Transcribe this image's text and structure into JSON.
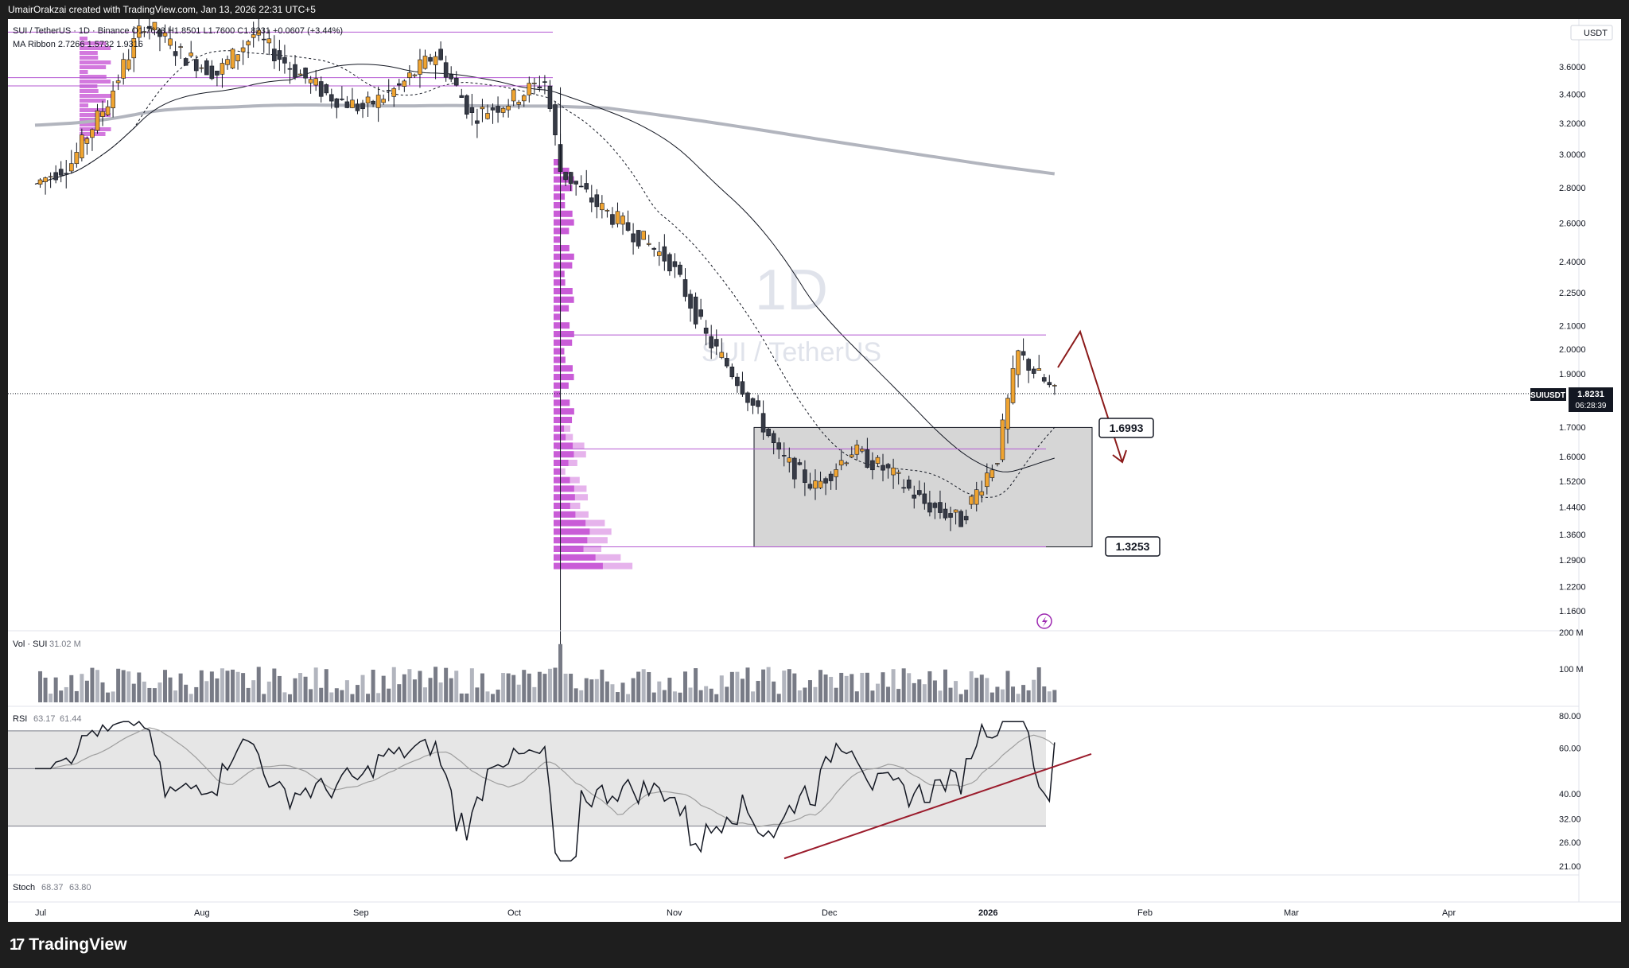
{
  "header": {
    "text": "UmairOrakzai created with TradingView.com, Jan 13, 2026 22:31 UTC+5"
  },
  "footer": {
    "brand": "TradingView",
    "brand_icon": "tradingview-logo-icon"
  },
  "chart": {
    "symbol_line": "SUI / TetherUS · 1D · Binance  O1.7623 H1.8501 L1.7600 C1.8231 +0.0607 (+3.44%)",
    "ma_line": "MA Ribbon  2.7266  1.5732  1.9316",
    "watermark_interval": "1D",
    "watermark_symbol": "SUI / TetherUS",
    "currency": "USDT",
    "price_badge_symbol": "SUIUSDT",
    "price_badge_value": "1.8231",
    "price_badge_timer": "06:28:39",
    "level_upper": "1.6993",
    "level_lower": "1.3253",
    "vol_label": "Vol · SUI",
    "vol_value": "31.02 M",
    "rsi_label": "RSI",
    "rsi_value1": "63.17",
    "rsi_value2": "61.44",
    "stoch_label": "Stoch",
    "stoch_value1": "68.37",
    "stoch_value2": "63.80",
    "colors": {
      "up": "#f0a430",
      "down": "#363a45",
      "ma_slow": "#b2b5be",
      "profile": "#c040d0",
      "level": "#b45ad2",
      "arrow": "#8b1a1a",
      "trend": "#9b1c2c"
    }
  },
  "chart_data": {
    "type": "candlestick",
    "price_ticks": [
      "3.6000",
      "3.4000",
      "3.2000",
      "3.0000",
      "2.8000",
      "2.6000",
      "2.4000",
      "2.2500",
      "2.1000",
      "2.0000",
      "1.9000",
      "1.7000",
      "1.6000",
      "1.5200",
      "1.4400",
      "1.3600",
      "1.2900",
      "1.2200",
      "1.1600"
    ],
    "vol_ticks": [
      "200 M",
      "100 M"
    ],
    "rsi_ticks": [
      "80.00",
      "60.00",
      "40.00",
      "32.00",
      "26.00",
      "21.00"
    ],
    "x_labels": [
      "Jul",
      "Aug",
      "Sep",
      "Oct",
      "Nov",
      "Dec",
      "2026",
      "Feb",
      "Mar",
      "Apr"
    ],
    "close_series": [
      {
        "date": "Jul 01",
        "close": 2.82
      },
      {
        "date": "Jul 08",
        "close": 2.95
      },
      {
        "date": "Jul 15",
        "close": 3.35
      },
      {
        "date": "Jul 22",
        "close": 3.95
      },
      {
        "date": "Jul 29",
        "close": 3.7
      },
      {
        "date": "Aug 05",
        "close": 3.55
      },
      {
        "date": "Aug 12",
        "close": 3.85
      },
      {
        "date": "Aug 19",
        "close": 3.6
      },
      {
        "date": "Aug 26",
        "close": 3.4
      },
      {
        "date": "Sep 02",
        "close": 3.3
      },
      {
        "date": "Sep 09",
        "close": 3.45
      },
      {
        "date": "Sep 16",
        "close": 3.7
      },
      {
        "date": "Sep 23",
        "close": 3.25
      },
      {
        "date": "Sep 30",
        "close": 3.35
      },
      {
        "date": "Oct 07",
        "close": 3.5
      },
      {
        "date": "Oct 10",
        "close": 2.9
      },
      {
        "date": "Oct 17",
        "close": 2.7
      },
      {
        "date": "Oct 24",
        "close": 2.55
      },
      {
        "date": "Oct 31",
        "close": 2.4
      },
      {
        "date": "Nov 07",
        "close": 2.05
      },
      {
        "date": "Nov 14",
        "close": 1.85
      },
      {
        "date": "Nov 21",
        "close": 1.6
      },
      {
        "date": "Nov 28",
        "close": 1.5
      },
      {
        "date": "Dec 05",
        "close": 1.62
      },
      {
        "date": "Dec 12",
        "close": 1.55
      },
      {
        "date": "Dec 19",
        "close": 1.45
      },
      {
        "date": "Dec 26",
        "close": 1.4
      },
      {
        "date": "Jan 02",
        "close": 1.6
      },
      {
        "date": "Jan 06",
        "close": 1.98
      },
      {
        "date": "Jan 13",
        "close": 1.8231
      }
    ],
    "rsi": {
      "value": 63.17,
      "signal": 61.44
    },
    "stoch": {
      "k": 68.37,
      "d": 63.8
    },
    "levels": [
      1.6993,
      1.3253
    ]
  }
}
